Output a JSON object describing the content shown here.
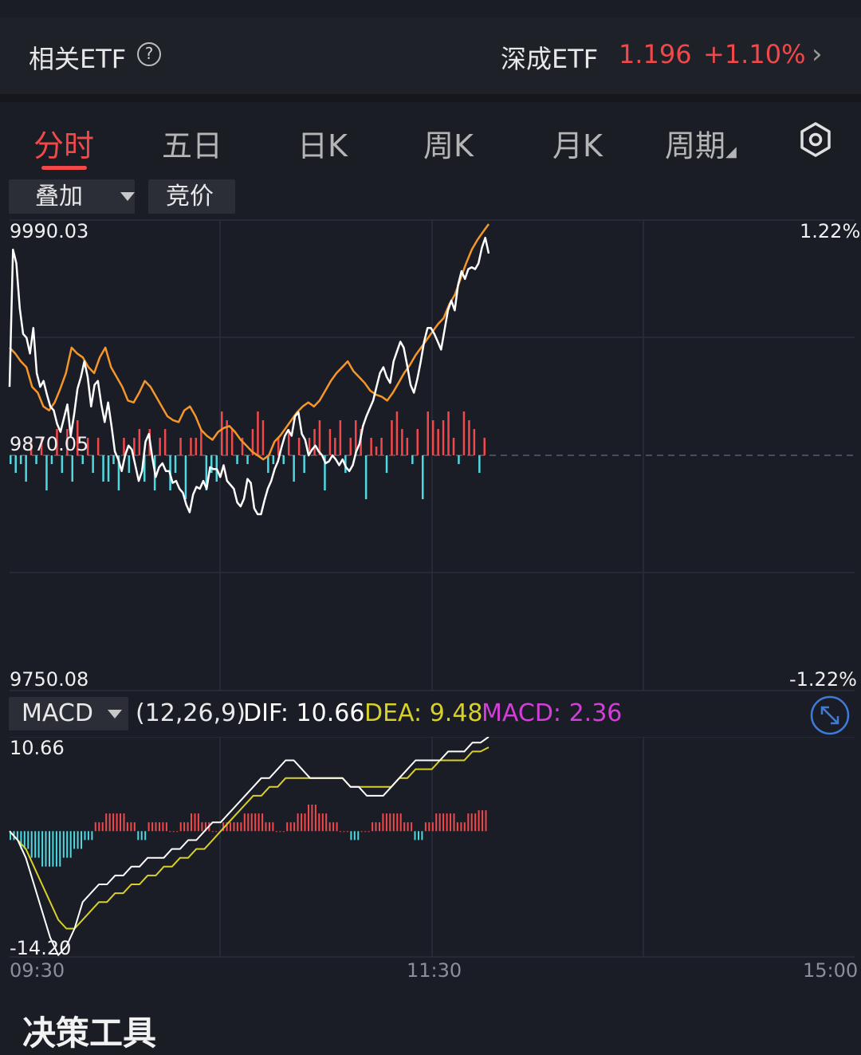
{
  "etf_bar": {
    "label": "相关ETF",
    "help_glyph": "?",
    "fund_name": "深成ETF",
    "fund_price": "1.196",
    "fund_change": "+1.10%",
    "chevron": "›"
  },
  "tabs": [
    {
      "label": "分时",
      "active": true
    },
    {
      "label": "五日",
      "active": false
    },
    {
      "label": "日K",
      "active": false
    },
    {
      "label": "周K",
      "active": false
    },
    {
      "label": "月K",
      "active": false
    },
    {
      "label": "周期",
      "active": false
    }
  ],
  "tab_more_glyph": "◢",
  "controls": {
    "overlay_label": "叠加",
    "auction_label": "竞价"
  },
  "price_axis": {
    "top": "9990.03",
    "mid": "9870.05",
    "bottom": "9750.08",
    "top_pct": "1.22%",
    "bottom_pct": "-1.22%"
  },
  "macd": {
    "selector_label": "MACD",
    "params": "(12,26,9)",
    "dif_label": "DIF: 10.66",
    "dea_label": "DEA: 9.48",
    "macd_label": "MACD: 2.36",
    "axis_top": "10.66",
    "axis_bottom": "-14.20"
  },
  "time_axis": [
    "09:30",
    "11:30",
    "15:00"
  ],
  "footer": {
    "section_title": "决策工具"
  },
  "colors": {
    "up": "#f0494b",
    "down": "#4fd8e0",
    "index_line": "#ffffff",
    "avg_line": "#f5962a",
    "dea_line": "#d8d02a",
    "macd_label": "#d23fd8",
    "dea_label": "#d8d02a"
  },
  "chart_data": {
    "type": "line",
    "price_range": [
      9750.08,
      9990.03
    ],
    "pre_close": 9870.05,
    "price_series": [
      {
        "values": [
          9905,
          9975,
          9968,
          9945,
          9932,
          9930,
          9922,
          9935,
          9912,
          9905,
          9908,
          9901,
          9895,
          9893,
          9886,
          9882,
          9889,
          9896,
          9880,
          9891,
          9904,
          9910,
          9918,
          9910,
          9895,
          9906,
          9908,
          9896,
          9887,
          9897,
          9885,
          9872,
          9868,
          9862,
          9870,
          9875,
          9873,
          9865,
          9857,
          9862,
          9877,
          9881,
          9869,
          9859,
          9864,
          9866,
          9862,
          9862,
          9856,
          9857,
          9853,
          9851,
          9845,
          9841,
          9850,
          9854,
          9853,
          9857,
          9853,
          9864,
          9863,
          9863,
          9859,
          9865,
          9857,
          9855,
          9853,
          9846,
          9844,
          9848,
          9858,
          9856,
          9843,
          9840,
          9840,
          9847,
          9853,
          9857,
          9863,
          9867,
          9874,
          9880,
          9883,
          9880,
          9890,
          9892,
          9881,
          9878,
          9870,
          9873,
          9875,
          9872,
          9870,
          9866,
          9867,
          9870,
          9868,
          9865,
          9868,
          9864,
          9862,
          9865,
          9872,
          9876,
          9885,
          9890,
          9894,
          9898,
          9905,
          9912,
          9915,
          9910,
          9907,
          9918,
          9923,
          9928,
          9925,
          9916,
          9906,
          9902,
          9909,
          9918,
          9928,
          9935,
          9935,
          9932,
          9928,
          9924,
          9934,
          9944,
          9949,
          9944,
          9957,
          9964,
          9960,
          9965,
          9966,
          9965,
          9968,
          9976,
          9981,
          9973
        ]
      },
      {
        "values": [
          9925,
          9922,
          9918,
          9915,
          9905,
          9902,
          9895,
          9893,
          9897,
          9904,
          9912,
          9925,
          9922,
          9920,
          9915,
          9912,
          9920,
          9925,
          9915,
          9910,
          9905,
          9898,
          9897,
          9902,
          9908,
          9905,
          9900,
          9895,
          9890,
          9888,
          9887,
          9893,
          9895,
          9890,
          9883,
          9880,
          9878,
          9882,
          9884,
          9885,
          9882,
          9878,
          9875,
          9872,
          9870,
          9868,
          9870,
          9877,
          9880,
          9884,
          9888,
          9892,
          9895,
          9897,
          9895,
          9898,
          9903,
          9908,
          9912,
          9915,
          9918,
          9913,
          9910,
          9907,
          9903,
          9901,
          9900,
          9898,
          9902,
          9907,
          9912,
          9916,
          9921,
          9925,
          9929,
          9933,
          9937,
          9940,
          9947,
          9952,
          9960,
          9968,
          9975,
          9980,
          9984,
          9988
        ]
      }
    ],
    "volume_range": [
      -5,
      5
    ],
    "volume": [
      -1,
      -2,
      -1,
      -3,
      2,
      -1,
      2,
      -4,
      -1,
      3,
      -2,
      3,
      -3,
      4,
      -1,
      2,
      -2,
      2,
      -3,
      -3,
      -1,
      -4,
      2,
      -2,
      2,
      3,
      -3,
      3,
      -4,
      2,
      3,
      -4,
      -2,
      2,
      -5,
      2,
      2,
      3,
      -4,
      -2,
      -3,
      5,
      4,
      3,
      -1,
      2,
      -1,
      3,
      5,
      4,
      -2,
      -1,
      2,
      -1,
      3,
      -3,
      2,
      -2,
      2,
      3,
      4,
      -4,
      3,
      2,
      4,
      -2,
      2,
      4,
      3,
      -5,
      2,
      1,
      2,
      -2,
      4,
      5,
      3,
      2,
      -1,
      3,
      -5,
      5,
      4,
      3,
      4,
      5,
      2,
      -1,
      5,
      4,
      3,
      -2,
      2
    ],
    "macd_range": [
      -14.2,
      10.66
    ],
    "dif": [
      0,
      -1,
      -3,
      -6,
      -9,
      -12,
      -14,
      -13,
      -11,
      -8,
      -7,
      -6,
      -6,
      -5,
      -5,
      -4,
      -4,
      -3,
      -3,
      -3,
      -2,
      -2,
      -1,
      -1,
      0,
      1,
      1,
      2,
      3,
      4,
      5,
      6,
      6,
      7,
      8,
      8,
      7,
      6,
      6,
      6,
      6,
      6,
      5,
      5,
      4,
      4,
      4,
      5,
      6,
      7,
      8,
      8,
      8,
      8,
      9,
      9,
      9,
      10,
      10,
      10.66
    ],
    "dea": [
      0,
      -1,
      -2,
      -4,
      -6,
      -8,
      -10,
      -11,
      -11,
      -10,
      -9,
      -8,
      -8,
      -7,
      -7,
      -6,
      -6,
      -5,
      -5,
      -4,
      -4,
      -3,
      -3,
      -2,
      -2,
      -1,
      0,
      1,
      2,
      3,
      4,
      4,
      5,
      5,
      6,
      6,
      6,
      6,
      6,
      6,
      6,
      6,
      5,
      5,
      5,
      5,
      5,
      5,
      6,
      6,
      7,
      7,
      7,
      8,
      8,
      8,
      8,
      9,
      9,
      9.48
    ],
    "macd_hist": [
      -1,
      -2,
      -3,
      -4,
      -4,
      -3,
      -2,
      -1,
      1,
      2,
      2,
      1,
      -1,
      1,
      1,
      0,
      1,
      2,
      1,
      0,
      1,
      1,
      2,
      2,
      1,
      0,
      1,
      2,
      3,
      2,
      1,
      0,
      -1,
      0,
      1,
      2,
      2,
      1,
      -1,
      1,
      2,
      2,
      1,
      2,
      2.36
    ]
  }
}
